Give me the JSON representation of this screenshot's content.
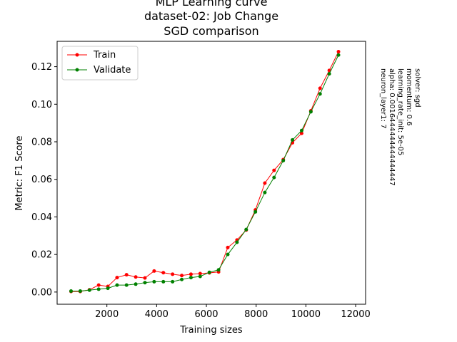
{
  "chart_data": {
    "type": "line",
    "title": [
      "MLP Learning curve",
      "dataset-02: Job Change",
      "SGD comparison"
    ],
    "xlabel": "Training sizes",
    "ylabel": "Metric: F1 Score",
    "xlim": [
      0,
      12400
    ],
    "ylim": [
      -0.0065,
      0.1335
    ],
    "xticks": [
      2000,
      4000,
      6000,
      8000,
      10000,
      12000
    ],
    "yticks": [
      0.0,
      0.02,
      0.04,
      0.06,
      0.08,
      0.1,
      0.12
    ],
    "ytick_labels": [
      "0.00",
      "0.02",
      "0.04",
      "0.06",
      "0.08",
      "0.10",
      "0.12"
    ],
    "legend_position": "upper-left",
    "grid": false,
    "x": [
      560,
      930,
      1300,
      1670,
      2040,
      2410,
      2790,
      3160,
      3530,
      3900,
      4270,
      4640,
      5010,
      5380,
      5750,
      6120,
      6490,
      6860,
      7230,
      7600,
      7970,
      8350,
      8720,
      9090,
      9460,
      9830,
      10200,
      10570,
      10940,
      11310
    ],
    "series": [
      {
        "name": "Train",
        "color": "#ff0000",
        "values": [
          0.0003,
          0.0003,
          0.0012,
          0.0037,
          0.003,
          0.0077,
          0.0092,
          0.008,
          0.0075,
          0.0112,
          0.0103,
          0.0095,
          0.0088,
          0.0095,
          0.0098,
          0.0102,
          0.0107,
          0.0237,
          0.0277,
          0.033,
          0.0437,
          0.058,
          0.0648,
          0.0705,
          0.0795,
          0.0845,
          0.0965,
          0.1085,
          0.118,
          0.128
        ]
      },
      {
        "name": "Validate",
        "color": "#008000",
        "values": [
          0.0005,
          0.0005,
          0.001,
          0.0015,
          0.002,
          0.0037,
          0.0037,
          0.0042,
          0.005,
          0.0055,
          0.0055,
          0.0055,
          0.0067,
          0.0077,
          0.0083,
          0.0105,
          0.0118,
          0.02,
          0.0265,
          0.0333,
          0.0427,
          0.053,
          0.061,
          0.07,
          0.081,
          0.086,
          0.096,
          0.1055,
          0.1162,
          0.1262
        ]
      }
    ],
    "side_text": [
      "solver: sgd",
      "momentum: 0.6",
      "learning_rate_init: 5e-05",
      "alpha: 0.0016444444444444447",
      "neuron_layer1: 7"
    ]
  }
}
